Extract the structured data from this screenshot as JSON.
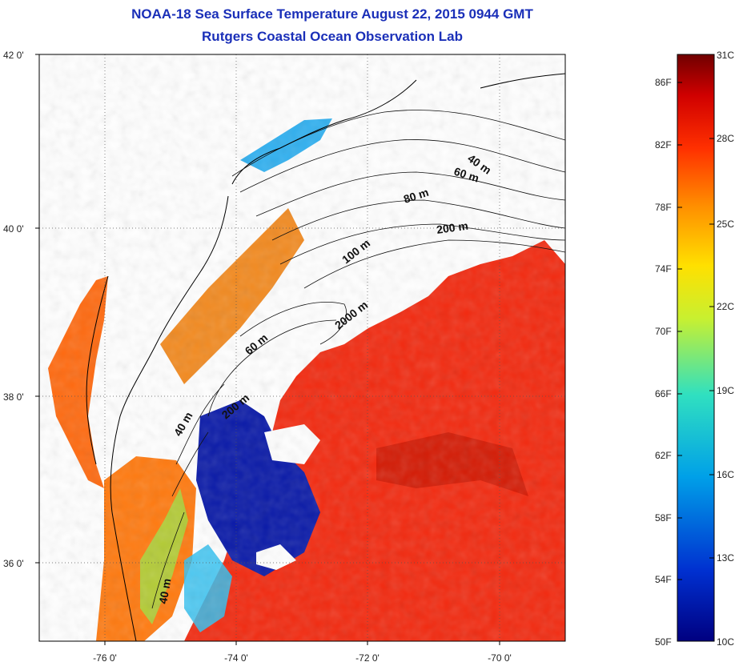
{
  "header": {
    "title": "NOAA-18 Sea Surface Temperature August 22, 2015 0944 GMT",
    "subtitle": "Rutgers Coastal Ocean Observation Lab"
  },
  "map": {
    "lat_ticks": [
      "42 0'",
      "40 0'",
      "38 0'",
      "36 0'"
    ],
    "lon_ticks": [
      "-76 0'",
      "-74 0'",
      "-72 0'",
      "-70 0'"
    ],
    "contour_labels": [
      "40 m",
      "60 m",
      "80 m",
      "200 m",
      "100 m",
      "2000 m",
      "60 m",
      "200 m",
      "40 m",
      "40 m"
    ],
    "land_color": "#ffffff",
    "cloud_color": "#ffffff"
  },
  "colorbar": {
    "fahrenheit_labels": [
      "86F",
      "82F",
      "78F",
      "74F",
      "70F",
      "66F",
      "62F",
      "58F",
      "54F",
      "50F"
    ],
    "celsius_labels": [
      "31C",
      "28C",
      "25C",
      "22C",
      "19C",
      "16C",
      "13C",
      "10C"
    ],
    "colors": [
      "#7a0000",
      "#c80000",
      "#ff2000",
      "#ff8000",
      "#ffd000",
      "#d8f020",
      "#40e0c0",
      "#00a0e0",
      "#0040d0",
      "#000080"
    ]
  }
}
